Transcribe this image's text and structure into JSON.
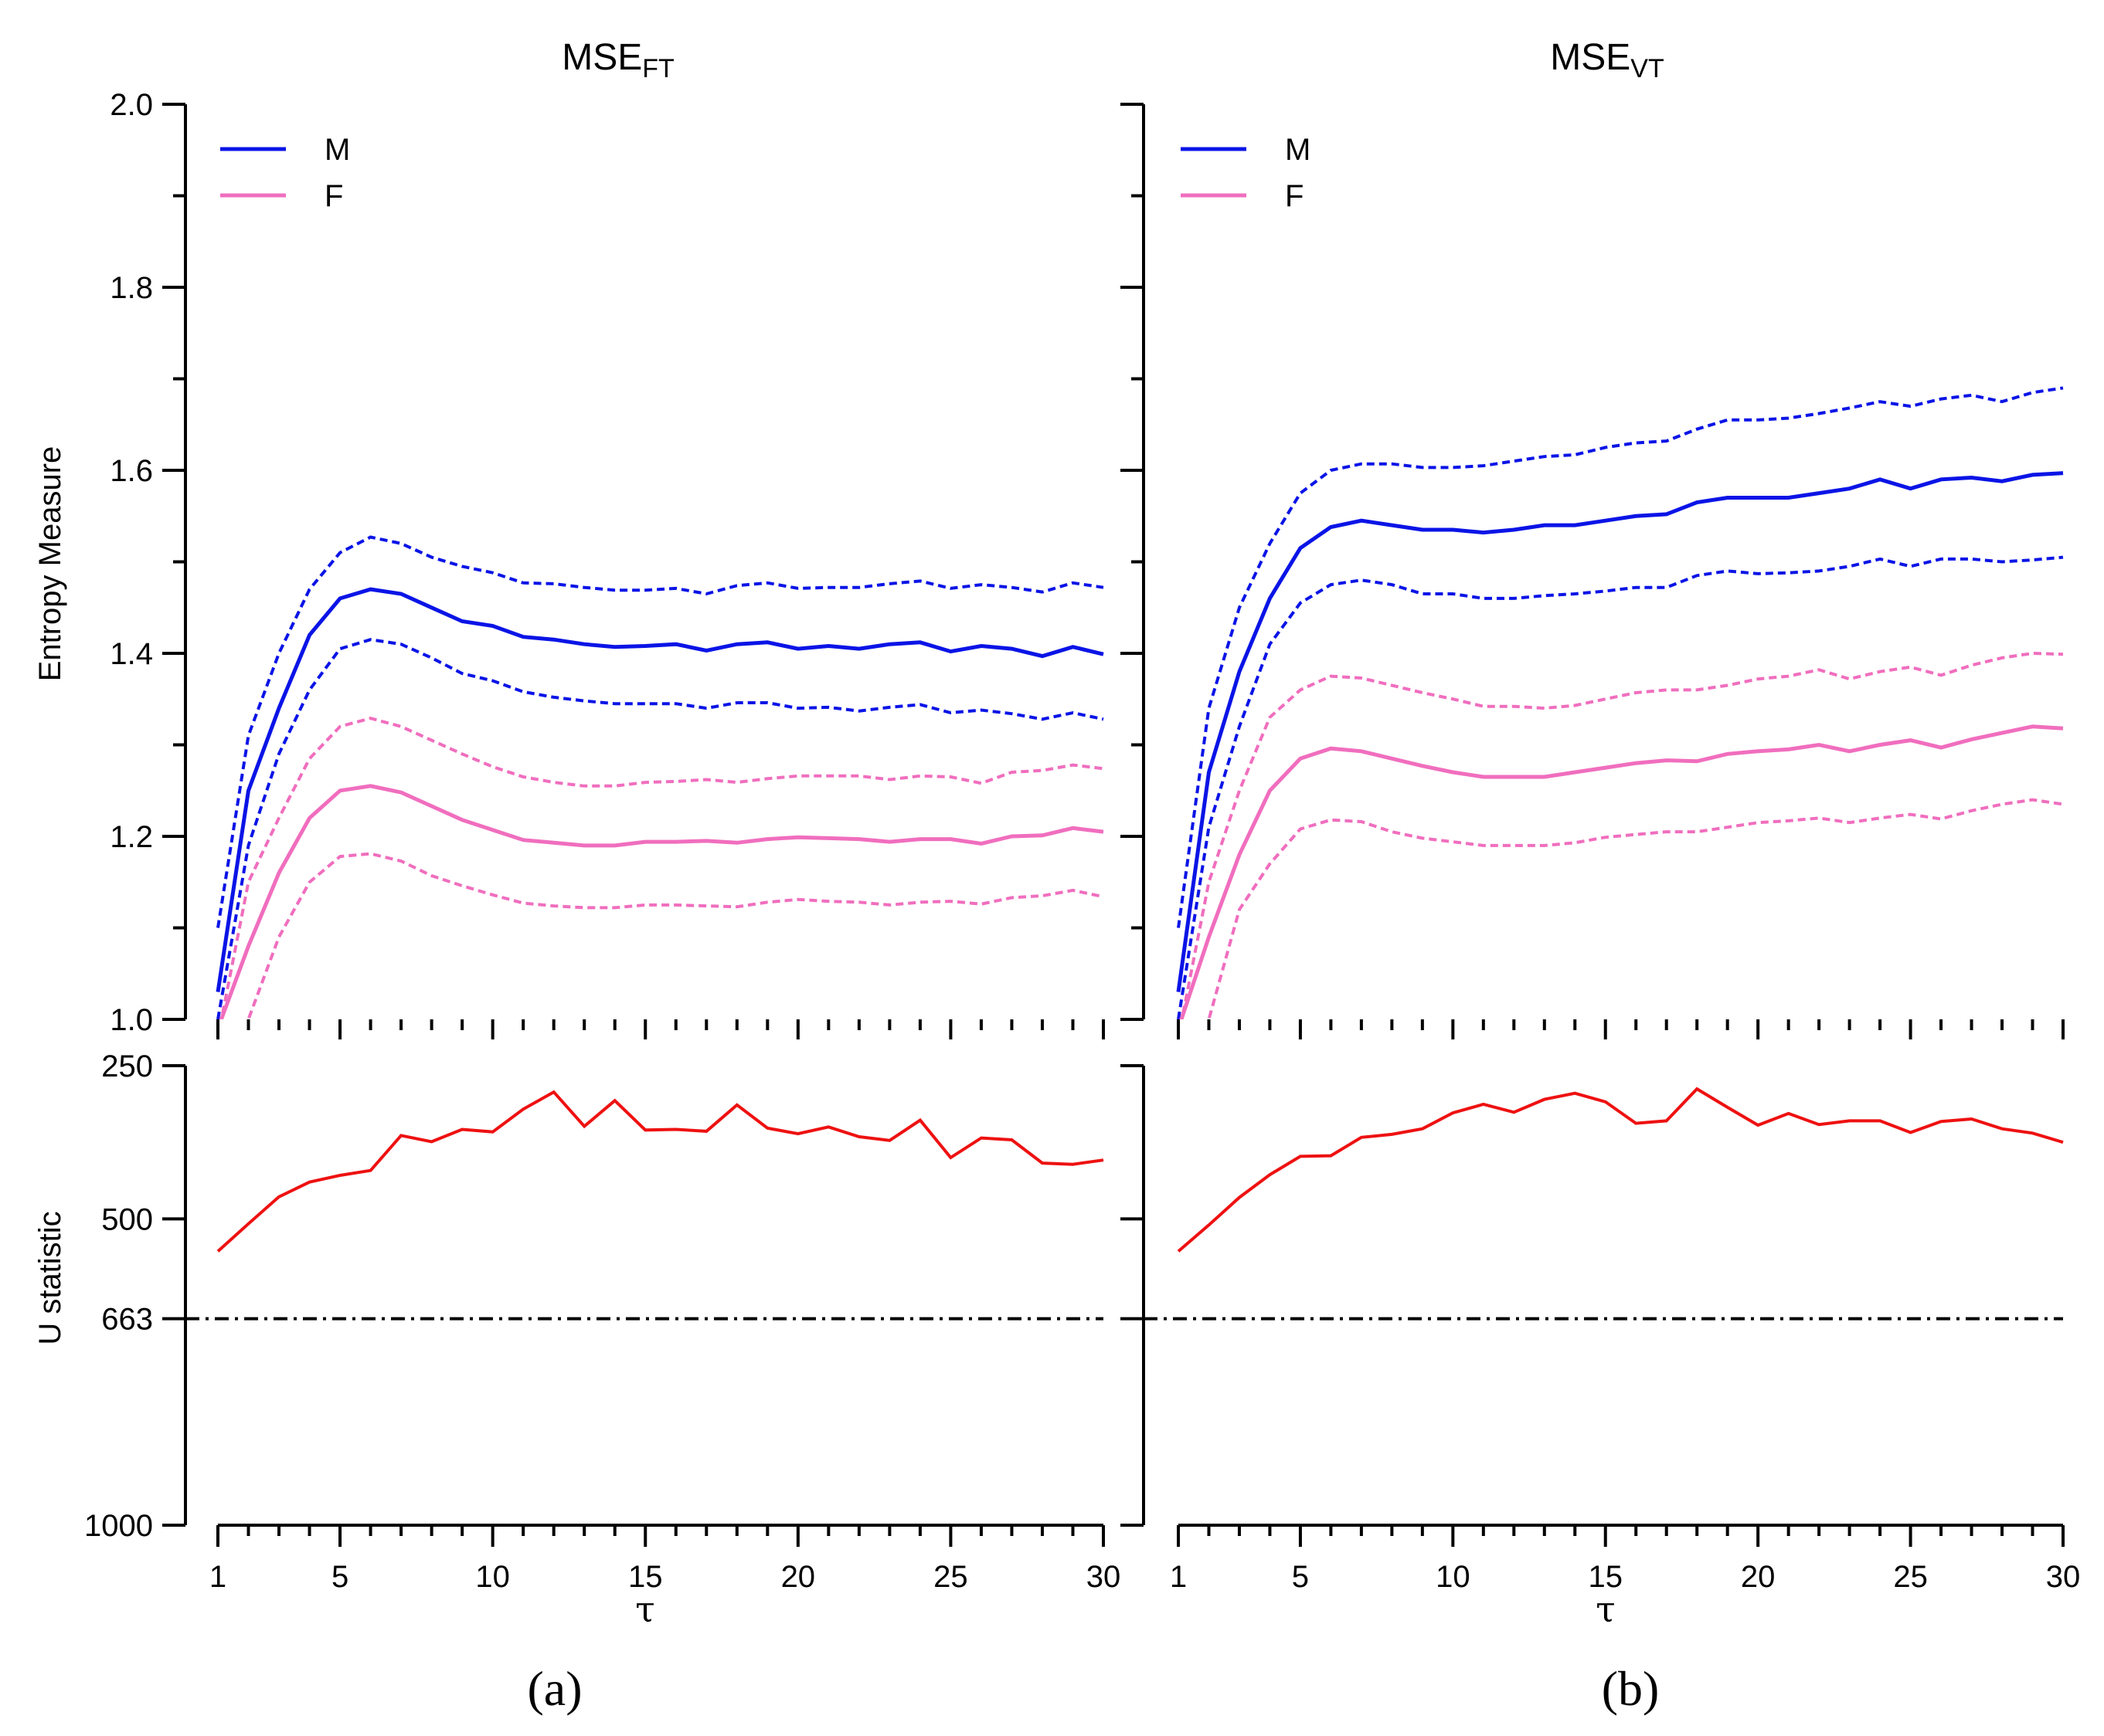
{
  "colors": {
    "male": "#0a14e6",
    "female": "#f06ebe",
    "ustat": "#ee1111",
    "threshold": "#000000"
  },
  "legend": {
    "male": "M",
    "female": "F"
  },
  "panel_labels": [
    "(a)",
    "(b)"
  ],
  "titles": {
    "a": {
      "base": "MSE",
      "sub": "FT"
    },
    "b": {
      "base": "MSE",
      "sub": "VT"
    }
  },
  "axis_labels": {
    "entropy": "Entropy Measure",
    "ustat": "U statistic",
    "tau": "τ"
  },
  "chart_data": [
    {
      "type": "line",
      "panel": "a-top",
      "title": "MSE_FT",
      "xlabel": "τ",
      "ylabel": "Entropy Measure",
      "xlim": [
        1,
        30
      ],
      "ylim": [
        1.0,
        2.0
      ],
      "yticks": [
        "1.0",
        "1.2",
        "1.4",
        "1.6",
        "1.8",
        "2.0"
      ],
      "x": [
        1,
        2,
        3,
        4,
        5,
        6,
        7,
        8,
        9,
        10,
        11,
        12,
        13,
        14,
        15,
        16,
        17,
        18,
        19,
        20,
        21,
        22,
        23,
        24,
        25,
        26,
        27,
        28,
        29,
        30
      ],
      "series": [
        {
          "name": "M",
          "style": "solid",
          "color": "#0a14e6",
          "values": [
            1.03,
            1.25,
            1.34,
            1.42,
            1.46,
            1.47,
            1.465,
            1.45,
            1.435,
            1.43,
            1.418,
            1.415,
            1.41,
            1.407,
            1.408,
            1.41,
            1.403,
            1.41,
            1.412,
            1.405,
            1.408,
            1.405,
            1.41,
            1.412,
            1.402,
            1.408,
            1.405,
            1.397,
            1.407,
            1.399
          ]
        },
        {
          "name": "M upper",
          "style": "dashed",
          "color": "#0a14e6",
          "values": [
            1.1,
            1.31,
            1.4,
            1.47,
            1.51,
            1.527,
            1.52,
            1.505,
            1.495,
            1.488,
            1.477,
            1.476,
            1.472,
            1.469,
            1.469,
            1.471,
            1.465,
            1.474,
            1.477,
            1.471,
            1.472,
            1.472,
            1.476,
            1.479,
            1.471,
            1.475,
            1.472,
            1.467,
            1.477,
            1.472
          ]
        },
        {
          "name": "M lower",
          "style": "dashed",
          "color": "#0a14e6",
          "values": [
            1.0,
            1.19,
            1.29,
            1.36,
            1.405,
            1.415,
            1.41,
            1.395,
            1.378,
            1.37,
            1.358,
            1.352,
            1.348,
            1.345,
            1.345,
            1.345,
            1.34,
            1.346,
            1.346,
            1.34,
            1.341,
            1.337,
            1.341,
            1.344,
            1.335,
            1.338,
            1.334,
            1.328,
            1.335,
            1.328
          ]
        },
        {
          "name": "F",
          "style": "solid",
          "color": "#f06ebe",
          "values": [
            0.99,
            1.08,
            1.16,
            1.22,
            1.25,
            1.255,
            1.248,
            1.233,
            1.218,
            1.207,
            1.196,
            1.193,
            1.19,
            1.19,
            1.194,
            1.194,
            1.195,
            1.193,
            1.197,
            1.199,
            1.198,
            1.197,
            1.194,
            1.197,
            1.197,
            1.192,
            1.2,
            1.201,
            1.209,
            1.205
          ]
        },
        {
          "name": "F upper",
          "style": "dashed",
          "color": "#f06ebe",
          "values": [
            0.98,
            1.15,
            1.22,
            1.285,
            1.32,
            1.329,
            1.32,
            1.305,
            1.29,
            1.276,
            1.265,
            1.259,
            1.255,
            1.255,
            1.259,
            1.26,
            1.262,
            1.259,
            1.263,
            1.266,
            1.266,
            1.266,
            1.262,
            1.266,
            1.265,
            1.258,
            1.27,
            1.272,
            1.278,
            1.274
          ]
        },
        {
          "name": "F lower",
          "style": "dashed",
          "color": "#f06ebe",
          "values": [
            0.98,
            1.0,
            1.09,
            1.15,
            1.178,
            1.181,
            1.173,
            1.157,
            1.146,
            1.136,
            1.127,
            1.124,
            1.122,
            1.122,
            1.125,
            1.125,
            1.124,
            1.123,
            1.128,
            1.131,
            1.129,
            1.128,
            1.125,
            1.128,
            1.129,
            1.126,
            1.133,
            1.135,
            1.141,
            1.134
          ]
        }
      ]
    },
    {
      "type": "line",
      "panel": "a-bottom",
      "xlabel": "τ",
      "ylabel": "U statistic",
      "xlim": [
        1,
        30
      ],
      "ylim": [
        250,
        1000
      ],
      "yticks": [
        "250",
        "500",
        "663",
        "1000"
      ],
      "xticks": [
        "1",
        "5",
        "10",
        "15",
        "20",
        "25",
        "30"
      ],
      "threshold": 663,
      "x": [
        1,
        2,
        3,
        4,
        5,
        6,
        7,
        8,
        9,
        10,
        11,
        12,
        13,
        14,
        15,
        16,
        17,
        18,
        19,
        20,
        21,
        22,
        23,
        24,
        25,
        26,
        27,
        28,
        29,
        30
      ],
      "series": [
        {
          "name": "U",
          "color": "#ee1111",
          "values": [
            553,
            508,
            464,
            440,
            429,
            421,
            364,
            374,
            354,
            358,
            321,
            293,
            349,
            307,
            355,
            354,
            357,
            314,
            352,
            361,
            350,
            366,
            372,
            339,
            400,
            368,
            371,
            409,
            411,
            404
          ]
        }
      ]
    },
    {
      "type": "line",
      "panel": "b-top",
      "title": "MSE_VT",
      "xlabel": "τ",
      "ylabel": "Entropy Measure",
      "xlim": [
        1,
        30
      ],
      "ylim": [
        1.0,
        2.0
      ],
      "x": [
        1,
        2,
        3,
        4,
        5,
        6,
        7,
        8,
        9,
        10,
        11,
        12,
        13,
        14,
        15,
        16,
        17,
        18,
        19,
        20,
        21,
        22,
        23,
        24,
        25,
        26,
        27,
        28,
        29,
        30
      ],
      "series": [
        {
          "name": "M",
          "style": "solid",
          "color": "#0a14e6",
          "values": [
            1.03,
            1.27,
            1.38,
            1.46,
            1.515,
            1.538,
            1.545,
            1.54,
            1.535,
            1.535,
            1.532,
            1.535,
            1.54,
            1.54,
            1.545,
            1.55,
            1.552,
            1.565,
            1.57,
            1.57,
            1.57,
            1.575,
            1.58,
            1.59,
            1.58,
            1.59,
            1.592,
            1.588,
            1.595,
            1.597
          ]
        },
        {
          "name": "M upper",
          "style": "dashed",
          "color": "#0a14e6",
          "values": [
            1.1,
            1.34,
            1.45,
            1.52,
            1.575,
            1.6,
            1.607,
            1.607,
            1.603,
            1.603,
            1.605,
            1.61,
            1.615,
            1.617,
            1.625,
            1.63,
            1.632,
            1.645,
            1.655,
            1.655,
            1.657,
            1.662,
            1.668,
            1.675,
            1.67,
            1.678,
            1.682,
            1.675,
            1.685,
            1.69
          ]
        },
        {
          "name": "M lower",
          "style": "dashed",
          "color": "#0a14e6",
          "values": [
            1.0,
            1.21,
            1.32,
            1.41,
            1.455,
            1.475,
            1.48,
            1.475,
            1.465,
            1.465,
            1.46,
            1.46,
            1.463,
            1.465,
            1.468,
            1.472,
            1.472,
            1.485,
            1.49,
            1.487,
            1.488,
            1.49,
            1.495,
            1.503,
            1.495,
            1.503,
            1.503,
            1.5,
            1.502,
            1.505
          ]
        },
        {
          "name": "F",
          "style": "solid",
          "color": "#f06ebe",
          "values": [
            0.99,
            1.09,
            1.18,
            1.25,
            1.285,
            1.296,
            1.293,
            1.285,
            1.277,
            1.27,
            1.265,
            1.265,
            1.265,
            1.27,
            1.275,
            1.28,
            1.283,
            1.282,
            1.29,
            1.293,
            1.295,
            1.3,
            1.293,
            1.3,
            1.305,
            1.297,
            1.306,
            1.313,
            1.32,
            1.318
          ]
        },
        {
          "name": "F upper",
          "style": "dashed",
          "color": "#f06ebe",
          "values": [
            0.98,
            1.15,
            1.25,
            1.33,
            1.36,
            1.375,
            1.373,
            1.365,
            1.357,
            1.35,
            1.342,
            1.342,
            1.34,
            1.343,
            1.35,
            1.357,
            1.36,
            1.36,
            1.365,
            1.372,
            1.375,
            1.382,
            1.372,
            1.38,
            1.385,
            1.376,
            1.387,
            1.395,
            1.4,
            1.399
          ]
        },
        {
          "name": "F lower",
          "style": "dashed",
          "color": "#f06ebe",
          "values": [
            0.98,
            1.0,
            1.12,
            1.17,
            1.208,
            1.218,
            1.216,
            1.205,
            1.198,
            1.194,
            1.19,
            1.19,
            1.19,
            1.193,
            1.199,
            1.202,
            1.205,
            1.205,
            1.21,
            1.215,
            1.217,
            1.22,
            1.215,
            1.22,
            1.224,
            1.219,
            1.228,
            1.235,
            1.24,
            1.235
          ]
        }
      ]
    },
    {
      "type": "line",
      "panel": "b-bottom",
      "xlabel": "τ",
      "ylabel": "U statistic",
      "xlim": [
        1,
        30
      ],
      "ylim": [
        250,
        1000
      ],
      "threshold": 663,
      "x": [
        1,
        2,
        3,
        4,
        5,
        6,
        7,
        8,
        9,
        10,
        11,
        12,
        13,
        14,
        15,
        16,
        17,
        18,
        19,
        20,
        21,
        22,
        23,
        24,
        25,
        26,
        27,
        28,
        29,
        30
      ],
      "series": [
        {
          "name": "U",
          "color": "#ee1111",
          "values": [
            553,
            510,
            465,
            428,
            398,
            397,
            367,
            362,
            353,
            327,
            313,
            326,
            305,
            295,
            309,
            344,
            340,
            288,
            318,
            347,
            328,
            346,
            340,
            340,
            359,
            341,
            337,
            353,
            360,
            375
          ]
        }
      ]
    }
  ]
}
